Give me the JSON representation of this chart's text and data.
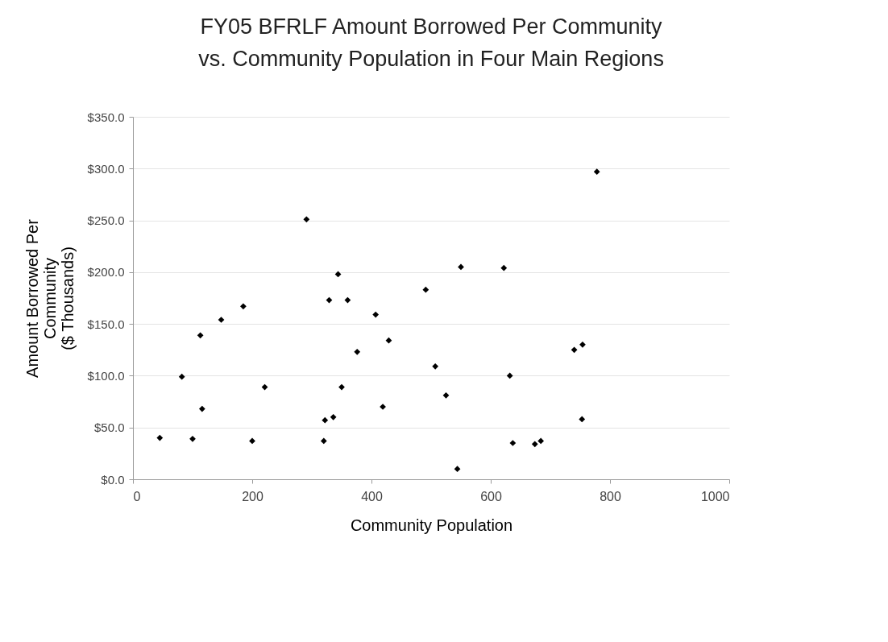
{
  "chart_data": {
    "type": "scatter",
    "title": "FY05 BFRLF Amount Borrowed Per Community\nvs. Community Population in Four Main Regions",
    "xlabel": "Community Population",
    "ylabel": "Amount Borrowed Per\nCommunity\n($ Thousands)",
    "x": [
      45,
      100,
      200,
      320,
      82,
      116,
      113,
      148,
      185,
      221,
      291,
      344,
      329,
      360,
      407,
      429,
      376,
      350,
      322,
      336,
      419,
      491,
      550,
      622,
      778,
      740,
      754,
      507,
      632,
      525,
      753,
      637,
      674,
      684,
      544
    ],
    "series": [
      {
        "color": "#000000",
        "values": [
          40,
          39,
          37,
          37,
          99,
          68,
          139,
          154,
          167,
          89,
          251,
          198,
          173,
          173,
          159,
          134,
          123,
          89,
          57,
          60,
          70,
          183,
          205,
          204,
          297,
          125,
          130,
          109,
          100,
          81,
          58,
          35,
          34,
          37,
          10
        ]
      }
    ],
    "xlim": [
      0,
      1000
    ],
    "xticks": [
      0,
      200,
      400,
      600,
      800,
      1000
    ],
    "ylim": [
      0,
      350
    ],
    "yticks": [
      {
        "value": 0,
        "label": "$0.0"
      },
      {
        "value": 50,
        "label": "$50.0"
      },
      {
        "value": 100,
        "label": "$100.0"
      },
      {
        "value": 150,
        "label": "$150.0"
      },
      {
        "value": 200,
        "label": "$200.0"
      },
      {
        "value": 250,
        "label": "$250.0"
      },
      {
        "value": 300,
        "label": "$300.0"
      },
      {
        "value": 350,
        "label": "$350.0"
      }
    ],
    "grid": "y",
    "marker": "diamond"
  }
}
